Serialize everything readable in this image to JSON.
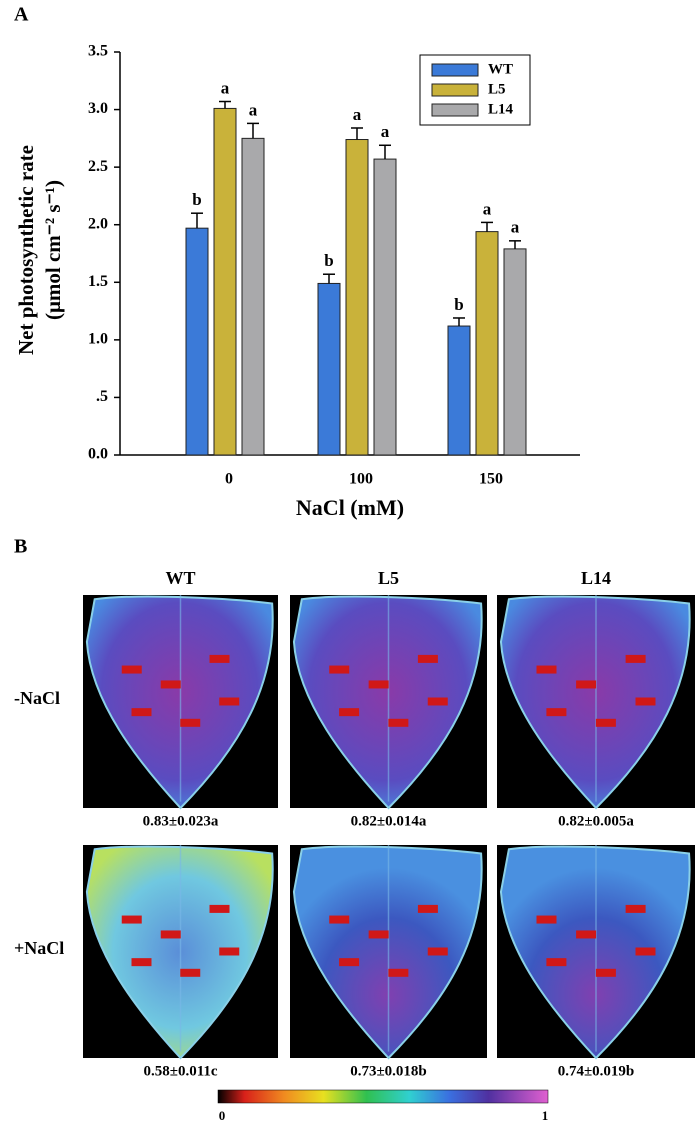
{
  "panel_labels": [
    "A",
    "B"
  ],
  "chart_data": {
    "type": "bar",
    "ylabel_lines": [
      "Net photosynthetic rate",
      "(μmol cm⁻² s⁻¹)"
    ],
    "xlabel": "NaCl (mM)",
    "categories": [
      "0",
      "100",
      "150"
    ],
    "series": [
      {
        "name": "WT",
        "color": "#3b7ad8",
        "values": [
          1.97,
          1.49,
          1.12
        ],
        "errors": [
          0.13,
          0.08,
          0.07
        ],
        "letters": [
          "b",
          "b",
          "b"
        ]
      },
      {
        "name": "L5",
        "color": "#c9b23a",
        "values": [
          3.01,
          2.74,
          1.94
        ],
        "errors": [
          0.06,
          0.1,
          0.08
        ],
        "letters": [
          "a",
          "a",
          "a"
        ]
      },
      {
        "name": "L14",
        "color": "#a9a9ab",
        "values": [
          2.75,
          2.57,
          1.79
        ],
        "errors": [
          0.13,
          0.12,
          0.07
        ],
        "letters": [
          "a",
          "a",
          "a"
        ]
      }
    ],
    "ylim": [
      0,
      3.5
    ],
    "yticks": [
      {
        "value": 0,
        "label": "0.0"
      },
      {
        "value": 0.5,
        "label": ".5"
      },
      {
        "value": 1,
        "label": "1.0"
      },
      1.5,
      {
        "value": 2,
        "label": "2.0"
      },
      2.5,
      {
        "value": 3,
        "label": "3.0"
      },
      3.5
    ],
    "legend": "upper right"
  },
  "panel_b": {
    "columns": [
      "WT",
      "L5",
      "L14"
    ],
    "rows": [
      "-NaCl",
      "+NaCl"
    ],
    "values": [
      [
        "0.83±0.023a",
        "0.82±0.014a",
        "0.82±0.005a"
      ],
      [
        "0.58±0.011c",
        "0.73±0.018b",
        "0.74±0.019b"
      ]
    ],
    "colorbar": {
      "min": 0,
      "max": 1
    }
  }
}
